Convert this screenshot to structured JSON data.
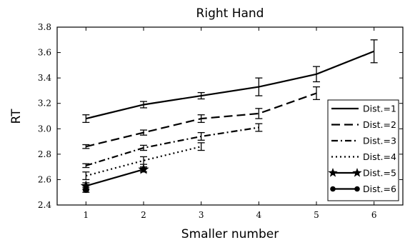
{
  "chart_data": {
    "type": "line",
    "title": "Right Hand",
    "xlabel": "Smaller number",
    "ylabel": "RT",
    "xlim": [
      0.5,
      6.5
    ],
    "ylim": [
      2.4,
      3.8
    ],
    "xticks": [
      "1",
      "2",
      "3",
      "4",
      "5",
      "6"
    ],
    "yticks": [
      "2.4",
      "2.6",
      "2.8",
      "3.0",
      "3.2",
      "3.4",
      "3.6",
      "3.8"
    ],
    "grid": false,
    "legend_position": "lower-right",
    "series": [
      {
        "name": "Dist.=1",
        "style": "solid",
        "x": [
          1,
          2,
          3,
          4,
          5,
          6
        ],
        "y": [
          3.08,
          3.19,
          3.26,
          3.33,
          3.43,
          3.61
        ],
        "err": [
          0.03,
          0.025,
          0.025,
          0.07,
          0.06,
          0.09
        ]
      },
      {
        "name": "Dist.=2",
        "style": "dashed",
        "x": [
          1,
          2,
          3,
          4,
          5
        ],
        "y": [
          2.86,
          2.97,
          3.08,
          3.12,
          3.28
        ],
        "err": [
          0.015,
          0.02,
          0.03,
          0.04,
          0.05
        ]
      },
      {
        "name": "Dist.=3",
        "style": "dashdot",
        "x": [
          1,
          2,
          3,
          4
        ],
        "y": [
          2.71,
          2.85,
          2.94,
          3.01
        ],
        "err": [
          0.015,
          0.02,
          0.03,
          0.03
        ]
      },
      {
        "name": "Dist.=4",
        "style": "dotted",
        "x": [
          1,
          2,
          3
        ],
        "y": [
          2.63,
          2.75,
          2.86
        ],
        "err": [
          0.03,
          0.03,
          0.03
        ]
      },
      {
        "name": "Dist.=5",
        "style": "solid-star",
        "x": [
          1,
          2
        ],
        "y": [
          2.55,
          2.68
        ],
        "err": [
          0.025,
          0.02
        ]
      },
      {
        "name": "Dist.=6",
        "style": "solid-dot",
        "x": [
          1
        ],
        "y": [
          2.52
        ],
        "err": [
          0.02
        ]
      }
    ]
  }
}
